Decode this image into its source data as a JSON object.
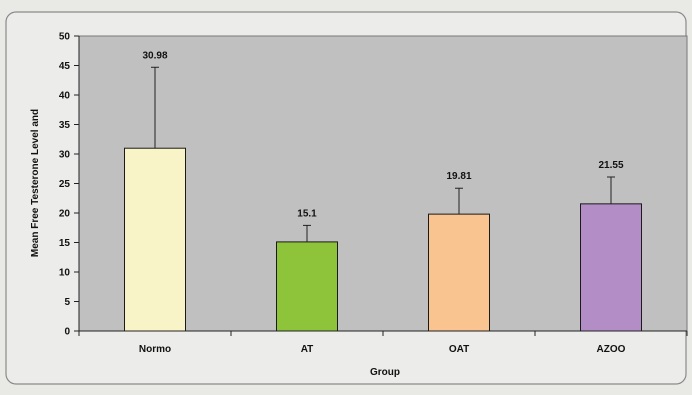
{
  "chart_data": {
    "type": "bar",
    "categories": [
      "Normo",
      "AT",
      "OAT",
      "AZOO"
    ],
    "values": [
      30.98,
      15.1,
      19.81,
      21.55
    ],
    "value_labels": [
      "30.98",
      "15.1",
      "19.81",
      "21.55"
    ],
    "error_upper": [
      44.7,
      17.9,
      24.2,
      26.1
    ],
    "bar_colors": [
      "#f8f4c8",
      "#8dc43a",
      "#f9c48f",
      "#b38ec6"
    ],
    "plot_background": "#c0c0c0",
    "title": "",
    "xlabel": "Group",
    "ylabel": "Mean Free Testerone Level and",
    "ylim": [
      0,
      50
    ],
    "yticks": [
      "0",
      "5",
      "10",
      "15",
      "20",
      "25",
      "30",
      "35",
      "40",
      "45",
      "50"
    ],
    "grid": false,
    "legend": "none"
  }
}
